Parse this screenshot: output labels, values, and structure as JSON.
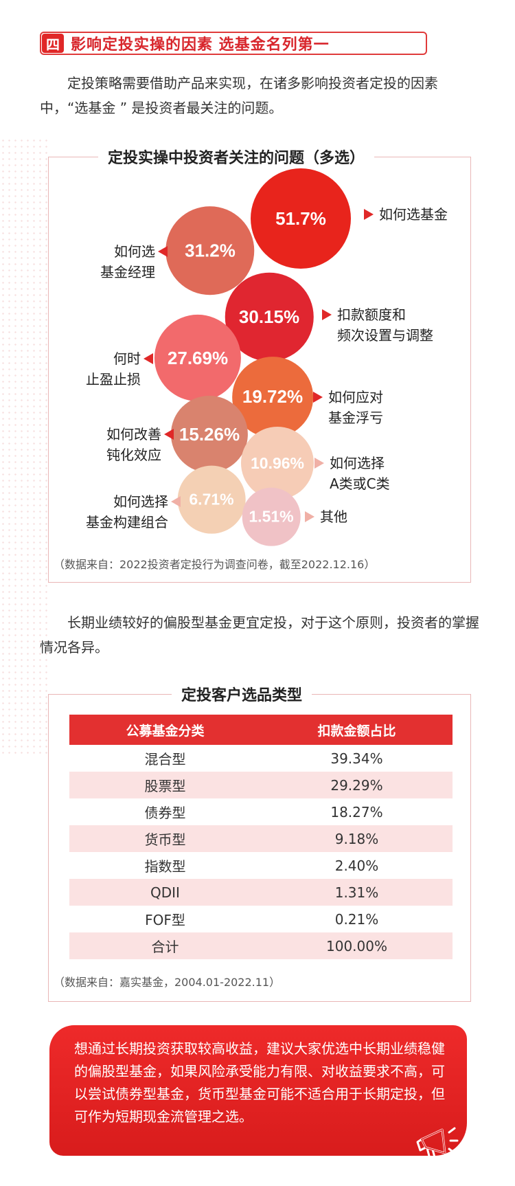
{
  "section": {
    "number": "四",
    "title": "影响定投实操的因素  选基金名列第一"
  },
  "intro": "定投策略需要借助产品来实现，在诸多影响投资者定投的因素中，“选基金 ” 是投资者最关注的问题。",
  "chart_data": {
    "type": "bubble",
    "title": "定投实操中投资者关注的问题（多选）",
    "items": [
      {
        "label_lines": [
          "如何选基金"
        ],
        "value": 51.7,
        "display": "51.7%",
        "color": "#e8241c"
      },
      {
        "label_lines": [
          "如何选",
          "基金经理"
        ],
        "value": 31.2,
        "display": "31.2%",
        "color": "#df6a58"
      },
      {
        "label_lines": [
          "扣款额度和",
          "频次设置与调整"
        ],
        "value": 30.15,
        "display": "30.15%",
        "color": "#e02630"
      },
      {
        "label_lines": [
          "何时",
          "止盈止损"
        ],
        "value": 27.69,
        "display": "27.69%",
        "color": "#f26a6c"
      },
      {
        "label_lines": [
          "如何应对",
          "基金浮亏"
        ],
        "value": 19.72,
        "display": "19.72%",
        "color": "#ec6b3c"
      },
      {
        "label_lines": [
          "如何改善",
          "钝化效应"
        ],
        "value": 15.26,
        "display": "15.26%",
        "color": "#d9836e"
      },
      {
        "label_lines": [
          "如何选择",
          "A类或C类"
        ],
        "value": 10.96,
        "display": "10.96%",
        "color": "#f6ccb6"
      },
      {
        "label_lines": [
          "如何选择",
          "基金构建组合"
        ],
        "value": 6.71,
        "display": "6.71%",
        "color": "#f4d0b4"
      },
      {
        "label_lines": [
          "其他"
        ],
        "value": 1.51,
        "display": "1.51%",
        "color": "#f0c2c6"
      }
    ],
    "source": "（数据来自：2022投资者定投行为调查问卷，截至2022.12.16）"
  },
  "para2": "长期业绩较好的偏股型基金更宜定投，对于这个原则，投资者的掌握情况各异。",
  "table": {
    "title": "定投客户选品类型",
    "headers": [
      "公募基金分类",
      "扣款金额占比"
    ],
    "rows": [
      [
        "混合型",
        "39.34%"
      ],
      [
        "股票型",
        "29.29%"
      ],
      [
        "债券型",
        "18.27%"
      ],
      [
        "货币型",
        "9.18%"
      ],
      [
        "指数型",
        "2.40%"
      ],
      [
        "QDII",
        "1.31%"
      ],
      [
        "FOF型",
        "0.21%"
      ],
      [
        "合计",
        "100.00%"
      ]
    ],
    "source": "（数据来自：嘉实基金，2004.01-2022.11）"
  },
  "callout": "想通过长期投资获取较高收益，建议大家优选中长期业绩稳健的偏股型基金，如果风险承受能力有限、对收益要求不高，可以尝试债券型基金，货币型基金可能不适合用于长期定投，但可作为短期现金流管理之选。",
  "icons": {
    "megaphone": "megaphone-icon"
  }
}
